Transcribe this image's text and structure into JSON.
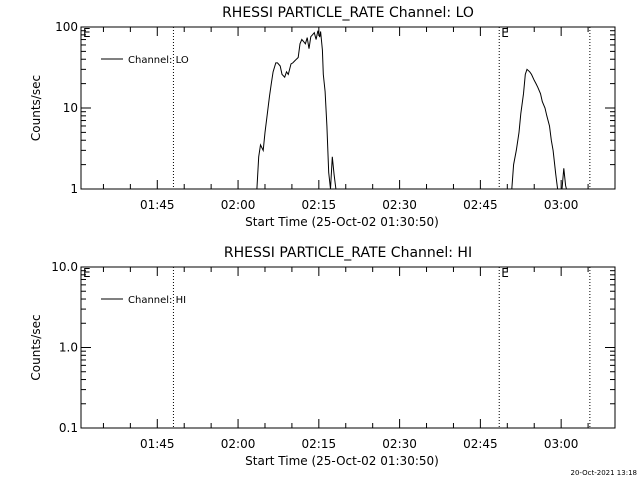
{
  "footer_timestamp": "20-Oct-2021 13:18",
  "chart_data": [
    {
      "type": "line",
      "title": "RHESSI PARTICLE_RATE Channel: LO",
      "xlabel": "Start Time (25-Oct-02 01:30:50)",
      "ylabel": "Counts/sec",
      "yscale": "log",
      "xlim": [
        "01:30:50",
        "03:10:00"
      ],
      "ylim": [
        1,
        100
      ],
      "x_ticks": [
        "01:45",
        "02:00",
        "02:15",
        "02:30",
        "02:45",
        "03:00"
      ],
      "y_ticks": [
        "1",
        "10",
        "100"
      ],
      "legend": {
        "position": "top-left",
        "entries": [
          "Channel: LO"
        ]
      },
      "event_markers": [
        {
          "time": "01:48:00",
          "label": ""
        },
        {
          "time": "02:48:30",
          "label": "E"
        },
        {
          "time": "03:05:20",
          "label": ""
        }
      ],
      "corner_label": "E",
      "series": [
        {
          "name": "Channel: LO",
          "x": [
            "02:03:30",
            "02:03:50",
            "02:04:10",
            "02:04:40",
            "02:05:00",
            "02:05:20",
            "02:05:50",
            "02:06:10",
            "02:06:30",
            "02:07:00",
            "02:07:20",
            "02:07:50",
            "02:08:10",
            "02:08:40",
            "02:09:00",
            "02:09:20",
            "02:09:50",
            "02:10:10",
            "02:10:30",
            "02:10:50",
            "02:11:10",
            "02:11:30",
            "02:11:50",
            "02:12:10",
            "02:12:30",
            "02:12:50",
            "02:13:10",
            "02:13:30",
            "02:13:50",
            "02:14:10",
            "02:14:30",
            "02:14:50",
            "02:15:10",
            "02:15:20",
            "02:15:40",
            "02:15:50",
            "02:16:10",
            "02:16:30",
            "02:16:50",
            "02:17:10",
            "02:17:30",
            "02:17:50",
            "02:18:10",
            "02:18:20"
          ],
          "y": [
            1.0,
            2.5,
            3.5,
            3.0,
            5.0,
            7.5,
            14,
            20,
            28,
            36,
            36,
            33,
            26,
            24,
            28,
            26,
            35,
            36,
            38,
            40,
            42,
            62,
            70,
            66,
            62,
            74,
            54,
            76,
            80,
            85,
            70,
            90,
            75,
            88,
            52,
            26,
            16,
            6,
            1.6,
            1.0,
            2.5,
            1.5,
            1.0,
            0.9
          ]
        },
        {
          "name": "Channel: LO",
          "x": [
            "02:50:50",
            "02:51:10",
            "02:51:40",
            "02:52:10",
            "02:52:30",
            "02:53:00",
            "02:53:20",
            "02:53:40",
            "02:54:10",
            "02:54:30",
            "02:55:00",
            "02:55:20",
            "02:55:40",
            "02:56:10",
            "02:56:30",
            "02:57:00",
            "02:57:20",
            "02:57:50",
            "02:58:10",
            "02:58:30",
            "02:59:00",
            "02:59:20",
            "02:59:40",
            "03:00:10",
            "03:00:30",
            "03:00:50",
            "03:01:10"
          ],
          "y": [
            1.0,
            2.0,
            3.0,
            5.0,
            8.5,
            15,
            26,
            30,
            28,
            26,
            22,
            20,
            18,
            15,
            12,
            10,
            8,
            6,
            4,
            3,
            1.5,
            1.0,
            0.9,
            1.0,
            1.8,
            1.1,
            0.9
          ]
        }
      ]
    },
    {
      "type": "line",
      "title": "RHESSI PARTICLE_RATE Channel: HI",
      "xlabel": "Start Time (25-Oct-02 01:30:50)",
      "ylabel": "Counts/sec",
      "yscale": "log",
      "xlim": [
        "01:30:50",
        "03:10:00"
      ],
      "ylim": [
        0.1,
        10
      ],
      "x_ticks": [
        "01:45",
        "02:00",
        "02:15",
        "02:30",
        "02:45",
        "03:00"
      ],
      "y_ticks": [
        "0.1",
        "1.0",
        "10.0"
      ],
      "legend": {
        "position": "top-left",
        "entries": [
          "Channel: HI"
        ]
      },
      "event_markers": [
        {
          "time": "01:48:00",
          "label": ""
        },
        {
          "time": "02:48:30",
          "label": "E"
        },
        {
          "time": "03:05:20",
          "label": ""
        }
      ],
      "corner_label": "E",
      "series": [
        {
          "name": "Channel: HI",
          "x": [],
          "y": []
        }
      ]
    }
  ]
}
